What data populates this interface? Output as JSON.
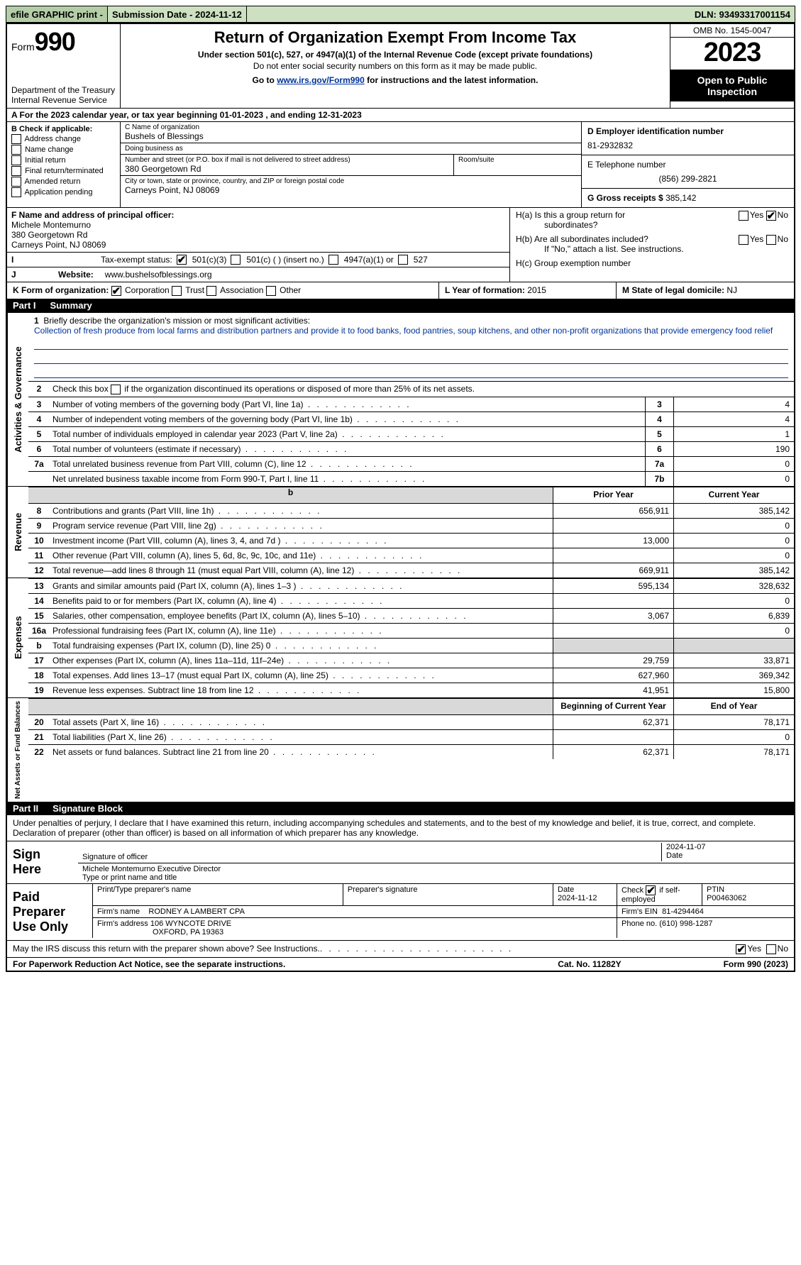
{
  "colors": {
    "link": "#003399",
    "header_bg": "#cde0c1",
    "header_bg_dark": "#b5cda7",
    "grey_fill": "#d9d9d9"
  },
  "topbar": {
    "efile": "efile GRAPHIC print -",
    "submission": "Submission Date - 2024-11-12",
    "dln": "DLN: 93493317001154"
  },
  "header": {
    "form_word": "Form",
    "form_num": "990",
    "dept": "Department of the Treasury",
    "irs": "Internal Revenue Service",
    "title": "Return of Organization Exempt From Income Tax",
    "sub": "Under section 501(c), 527, or 4947(a)(1) of the Internal Revenue Code (except private foundations)",
    "sub2": "Do not enter social security numbers on this form as it may be made public.",
    "go_pre": "Go to ",
    "go_link": "www.irs.gov/Form990",
    "go_post": " for instructions and the latest information.",
    "omb": "OMB No. 1545-0047",
    "year": "2023",
    "open": "Open to Public Inspection"
  },
  "line_a": "A For the 2023 calendar year, or tax year beginning 01-01-2023   , and ending 12-31-2023",
  "box_b": {
    "title": "B Check if applicable:",
    "opts": [
      "Address change",
      "Name change",
      "Initial return",
      "Final return/terminated",
      "Amended return",
      "Application pending"
    ]
  },
  "box_c": {
    "name_lbl": "C Name of organization",
    "name": "Bushels of Blessings",
    "dba_lbl": "Doing business as",
    "dba": "",
    "street_lbl": "Number and street (or P.O. box if mail is not delivered to street address)",
    "street": "380 Georgetown Rd",
    "room_lbl": "Room/suite",
    "room": "",
    "city_lbl": "City or town, state or province, country, and ZIP or foreign postal code",
    "city": "Carneys Point, NJ  08069"
  },
  "box_d": {
    "lbl": "D Employer identification number",
    "val": "81-2932832"
  },
  "box_e": {
    "lbl": "E Telephone number",
    "val": "(856) 299-2821"
  },
  "box_g": {
    "lbl": "G Gross receipts $",
    "val": "385,142"
  },
  "box_f": {
    "lbl": "F  Name and address of principal officer:",
    "name": "Michele Montemurno",
    "street": "380 Georgetown Rd",
    "city": "Carneys Point, NJ  08069"
  },
  "line_i": {
    "lbl": "Tax-exempt status:",
    "opts": [
      "501(c)(3)",
      "501(c) (  ) (insert no.)",
      "4947(a)(1) or",
      "527"
    ],
    "checked": 0
  },
  "line_j": {
    "lbl": "Website:",
    "val": "www.bushelsofblessings.org"
  },
  "line_k": {
    "lbl": "K Form of organization:",
    "opts": [
      "Corporation",
      "Trust",
      "Association",
      "Other"
    ],
    "checked": 0
  },
  "box_h": {
    "a1": "H(a)  Is this a group return for",
    "a2": "subordinates?",
    "a_yes": false,
    "a_no": true,
    "b1": "H(b)  Are all subordinates included?",
    "b_yes": false,
    "b_no": false,
    "b_note": "If \"No,\" attach a list. See instructions.",
    "c": "H(c)  Group exemption number"
  },
  "line_l": {
    "lbl": "L Year of formation:",
    "val": "2015"
  },
  "line_m": {
    "lbl": "M State of legal domicile:",
    "val": "NJ"
  },
  "part1": {
    "num": "Part I",
    "title": "Summary"
  },
  "summary": {
    "q1_lbl": "Briefly describe the organization's mission or most significant activities:",
    "q1_text": "Collection of fresh produce from local farms and distribution partners and provide it to food banks, food pantries, soup kitchens, and other non-profit organizations that provide emergency food relief",
    "q2": "Check this box      if the organization discontinued its operations or disposed of more than 25% of its net assets.",
    "rows_gov": [
      {
        "n": "3",
        "t": "Number of voting members of the governing body (Part VI, line 1a)",
        "cell": "3",
        "val": "4"
      },
      {
        "n": "4",
        "t": "Number of independent voting members of the governing body (Part VI, line 1b)",
        "cell": "4",
        "val": "4"
      },
      {
        "n": "5",
        "t": "Total number of individuals employed in calendar year 2023 (Part V, line 2a)",
        "cell": "5",
        "val": "1"
      },
      {
        "n": "6",
        "t": "Total number of volunteers (estimate if necessary)",
        "cell": "6",
        "val": "190"
      },
      {
        "n": "7a",
        "t": "Total unrelated business revenue from Part VIII, column (C), line 12",
        "cell": "7a",
        "val": "0"
      },
      {
        "n": "",
        "t": "Net unrelated business taxable income from Form 990-T, Part I, line 11",
        "cell": "7b",
        "val": "0"
      }
    ],
    "col_prior": "Prior Year",
    "col_current": "Current Year",
    "rows_rev": [
      {
        "n": "8",
        "t": "Contributions and grants (Part VIII, line 1h)",
        "p": "656,911",
        "c": "385,142"
      },
      {
        "n": "9",
        "t": "Program service revenue (Part VIII, line 2g)",
        "p": "",
        "c": "0"
      },
      {
        "n": "10",
        "t": "Investment income (Part VIII, column (A), lines 3, 4, and 7d )",
        "p": "13,000",
        "c": "0"
      },
      {
        "n": "11",
        "t": "Other revenue (Part VIII, column (A), lines 5, 6d, 8c, 9c, 10c, and 11e)",
        "p": "",
        "c": "0"
      },
      {
        "n": "12",
        "t": "Total revenue—add lines 8 through 11 (must equal Part VIII, column (A), line 12)",
        "p": "669,911",
        "c": "385,142"
      }
    ],
    "rows_exp": [
      {
        "n": "13",
        "t": "Grants and similar amounts paid (Part IX, column (A), lines 1–3 )",
        "p": "595,134",
        "c": "328,632"
      },
      {
        "n": "14",
        "t": "Benefits paid to or for members (Part IX, column (A), line 4)",
        "p": "",
        "c": "0"
      },
      {
        "n": "15",
        "t": "Salaries, other compensation, employee benefits (Part IX, column (A), lines 5–10)",
        "p": "3,067",
        "c": "6,839"
      },
      {
        "n": "16a",
        "t": "Professional fundraising fees (Part IX, column (A), line 11e)",
        "p": "",
        "c": "0"
      },
      {
        "n": "b",
        "t": "Total fundraising expenses (Part IX, column (D), line 25) 0",
        "p": "GREY",
        "c": "GREY"
      },
      {
        "n": "17",
        "t": "Other expenses (Part IX, column (A), lines 11a–11d, 11f–24e)",
        "p": "29,759",
        "c": "33,871"
      },
      {
        "n": "18",
        "t": "Total expenses. Add lines 13–17 (must equal Part IX, column (A), line 25)",
        "p": "627,960",
        "c": "369,342"
      },
      {
        "n": "19",
        "t": "Revenue less expenses. Subtract line 18 from line 12",
        "p": "41,951",
        "c": "15,800"
      }
    ],
    "col_begin": "Beginning of Current Year",
    "col_end": "End of Year",
    "rows_net": [
      {
        "n": "20",
        "t": "Total assets (Part X, line 16)",
        "p": "62,371",
        "c": "78,171"
      },
      {
        "n": "21",
        "t": "Total liabilities (Part X, line 26)",
        "p": "",
        "c": "0"
      },
      {
        "n": "22",
        "t": "Net assets or fund balances. Subtract line 21 from line 20",
        "p": "62,371",
        "c": "78,171"
      }
    ]
  },
  "vlabels": {
    "gov": "Activities & Governance",
    "rev": "Revenue",
    "exp": "Expenses",
    "net": "Net Assets or Fund Balances"
  },
  "part2": {
    "num": "Part II",
    "title": "Signature Block"
  },
  "sig": {
    "declare": "Under penalties of perjury, I declare that I have examined this return, including accompanying schedules and statements, and to the best of my knowledge and belief, it is true, correct, and complete. Declaration of preparer (other than officer) is based on all information of which preparer has any knowledge.",
    "sign_here": "Sign Here",
    "sig_officer_lbl": "Signature of officer",
    "sig_date": "2024-11-07",
    "date_lbl": "Date",
    "officer_name": "Michele Montemurno  Executive Director",
    "type_lbl": "Type or print name and title",
    "paid": "Paid Preparer Use Only",
    "prep_name_lbl": "Print/Type preparer's name",
    "prep_name": "",
    "prep_sig_lbl": "Preparer's signature",
    "prep_date_lbl": "Date",
    "prep_date": "2024-11-12",
    "check_self": "Check        if self-employed",
    "check_self_val": true,
    "ptin_lbl": "PTIN",
    "ptin": "P00463062",
    "firm_name_lbl": "Firm's name",
    "firm_name": "RODNEY A LAMBERT CPA",
    "firm_ein_lbl": "Firm's EIN",
    "firm_ein": "81-4294464",
    "firm_addr_lbl": "Firm's address",
    "firm_addr1": "106 WYNCOTE DRIVE",
    "firm_addr2": "OXFORD, PA  19363",
    "firm_phone_lbl": "Phone no.",
    "firm_phone": "(610) 998-1287",
    "discuss": "May the IRS discuss this return with the preparer shown above? See Instructions.",
    "discuss_yes": true,
    "discuss_no": false
  },
  "footer": {
    "pra": "For Paperwork Reduction Act Notice, see the separate instructions.",
    "cat": "Cat. No. 11282Y",
    "form": "Form 990 (2023)"
  }
}
